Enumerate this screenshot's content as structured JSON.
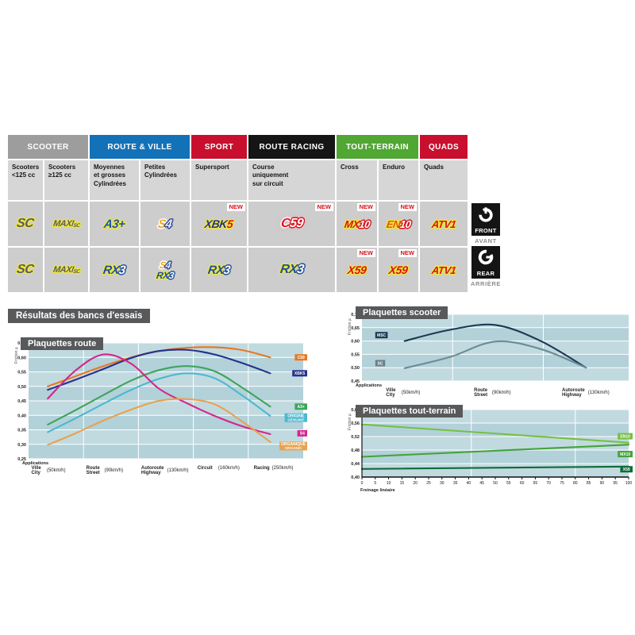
{
  "section_heading": "Résultats des bancs d'essais",
  "side_markers": {
    "front": {
      "title": "FRONT",
      "subtitle": "AVANT"
    },
    "rear": {
      "title": "REAR",
      "subtitle": "ARRIÈRE"
    }
  },
  "table": {
    "new_badge": "NEW",
    "groups": [
      {
        "label": "SCOOTER",
        "bg": "#9d9d9d",
        "span": 2
      },
      {
        "label": "ROUTE & VILLE",
        "bg": "#1371b8",
        "span": 2
      },
      {
        "label": "SPORT",
        "bg": "#c8102e",
        "span": 1
      },
      {
        "label": "ROUTE RACING",
        "bg": "#151515",
        "span": 1
      },
      {
        "label": "TOUT-TERRAIN",
        "bg": "#50a733",
        "span": 2
      },
      {
        "label": "QUADS",
        "bg": "#c8102e",
        "span": 1
      }
    ],
    "subcolumns": [
      "Scooters\n<125 cc",
      "Scooters\n≥125 cc",
      "Moyennes\net grosses\nCylindrées",
      "Petites\nCylindrées",
      "Supersport",
      "Course\nuniquement\nsur circuit",
      "Cross",
      "Enduro",
      "Quads"
    ],
    "rows": {
      "front": [
        {
          "logos": [
            {
              "fs": 16,
              "parts": [
                {
                  "t": "SC",
                  "c": "#5b5d60",
                  "o": "#eee73d"
                }
              ]
            }
          ]
        },
        {
          "logos": [
            {
              "fs": 11,
              "parts": [
                {
                  "t": "MAXI",
                  "c": "#5b5d60",
                  "o": "#eee73d"
                },
                {
                  "t": "SC",
                  "c": "#5b5d60",
                  "o": "#eee73d",
                  "sub": true
                }
              ]
            }
          ]
        },
        {
          "logos": [
            {
              "fs": 15,
              "parts": [
                {
                  "t": "A3+",
                  "c": "#1a56a8",
                  "o": "#eee73d"
                }
              ]
            }
          ]
        },
        {
          "logos": [
            {
              "fs": 15,
              "parts": [
                {
                  "t": "S",
                  "c": "#f2a71d",
                  "o": "#ffffff"
                },
                {
                  "t": "4",
                  "c": "#e9edf2",
                  "o": "#26418f"
                }
              ]
            }
          ]
        },
        {
          "new": true,
          "logos": [
            {
              "fs": 14,
              "parts": [
                {
                  "t": "XBK",
                  "c": "#26318d",
                  "o": "#eee73d"
                },
                {
                  "t": "5",
                  "c": "#d8131c",
                  "o": "#eee73d"
                }
              ]
            }
          ]
        },
        {
          "new": true,
          "logos": [
            {
              "fs": 16,
              "glow": "#f7a8c4",
              "parts": [
                {
                  "t": "C",
                  "c": "#d8131c",
                  "o": "#ffffff"
                },
                {
                  "t": "59",
                  "c": "#ffffff",
                  "o": "#d8131c"
                }
              ]
            }
          ]
        },
        {
          "new": true,
          "logos": [
            {
              "fs": 13,
              "parts": [
                {
                  "t": "MX",
                  "c": "#d8131c",
                  "o": "#eee73d"
                },
                {
                  "t": "10",
                  "c": "#ffffff",
                  "o": "#d8131c"
                }
              ]
            }
          ]
        },
        {
          "new": true,
          "logos": [
            {
              "fs": 13,
              "parts": [
                {
                  "t": "EN",
                  "c": "#e4570f",
                  "o": "#eee73d"
                },
                {
                  "t": "10",
                  "c": "#ffffff",
                  "o": "#d8131c"
                }
              ]
            }
          ]
        },
        {
          "logos": [
            {
              "fs": 13,
              "parts": [
                {
                  "t": "ATV1",
                  "c": "#d8131c",
                  "o": "#eee73d"
                }
              ]
            }
          ]
        }
      ],
      "rear": [
        {
          "logos": [
            {
              "fs": 16,
              "parts": [
                {
                  "t": "SC",
                  "c": "#5b5d60",
                  "o": "#eee73d"
                }
              ]
            }
          ]
        },
        {
          "logos": [
            {
              "fs": 11,
              "parts": [
                {
                  "t": "MAXI",
                  "c": "#5b5d60",
                  "o": "#eee73d"
                },
                {
                  "t": "SC",
                  "c": "#5b5d60",
                  "o": "#eee73d",
                  "sub": true
                }
              ]
            }
          ]
        },
        {
          "logos": [
            {
              "fs": 15,
              "parts": [
                {
                  "t": "RX",
                  "c": "#1f4fa0",
                  "o": "#eee73d"
                },
                {
                  "t": "3",
                  "c": "#fdfdf0",
                  "o": "#1f4fa0"
                }
              ]
            }
          ]
        },
        {
          "logos": [
            {
              "fs": 12,
              "parts": [
                {
                  "t": "S",
                  "c": "#f2a71d",
                  "o": "#ffffff"
                },
                {
                  "t": "4",
                  "c": "#e9edf2",
                  "o": "#26418f"
                }
              ]
            },
            {
              "fs": 12,
              "parts": [
                {
                  "t": "RX",
                  "c": "#1f4fa0",
                  "o": "#eee73d"
                },
                {
                  "t": "3",
                  "c": "#fdfdf0",
                  "o": "#1f4fa0"
                }
              ]
            }
          ]
        },
        {
          "logos": [
            {
              "fs": 15,
              "parts": [
                {
                  "t": "RX",
                  "c": "#1f4fa0",
                  "o": "#eee73d"
                },
                {
                  "t": "3",
                  "c": "#fdfdf0",
                  "o": "#1f4fa0"
                }
              ]
            }
          ]
        },
        {
          "logos": [
            {
              "fs": 16,
              "parts": [
                {
                  "t": "RX",
                  "c": "#1f4fa0",
                  "o": "#eee73d"
                },
                {
                  "t": "3",
                  "c": "#fdfdf0",
                  "o": "#1f4fa0"
                }
              ]
            }
          ]
        },
        {
          "new": true,
          "logos": [
            {
              "fs": 14,
              "parts": [
                {
                  "t": "X59",
                  "c": "#d8131c",
                  "o": "#eee73d"
                }
              ]
            }
          ]
        },
        {
          "new": true,
          "logos": [
            {
              "fs": 14,
              "parts": [
                {
                  "t": "X59",
                  "c": "#d8131c",
                  "o": "#eee73d"
                }
              ]
            }
          ]
        },
        {
          "logos": [
            {
              "fs": 13,
              "parts": [
                {
                  "t": "ATV1",
                  "c": "#d8131c",
                  "o": "#eee73d"
                }
              ]
            }
          ]
        }
      ]
    }
  },
  "chart_data": [
    {
      "id": "route",
      "type": "line",
      "title": "Plaquettes route",
      "ylabel": "Friction µ",
      "x_caption": "Applications",
      "ylim": [
        0.25,
        0.65
      ],
      "grid": true,
      "legend_position": "right",
      "yticks": [
        {
          "v": 0.65,
          "t": "0,65"
        },
        {
          "v": 0.6,
          "t": "0,60"
        },
        {
          "v": 0.55,
          "t": "0,55"
        },
        {
          "v": 0.5,
          "t": "0,50"
        },
        {
          "v": 0.45,
          "t": "0,45"
        },
        {
          "v": 0.4,
          "t": "0,40"
        },
        {
          "v": 0.35,
          "t": "0,35"
        },
        {
          "v": 0.3,
          "t": "0,30"
        },
        {
          "v": 0.25,
          "t": "0,25"
        }
      ],
      "categories": [
        {
          "fr": "Ville",
          "en": "City",
          "speed": "(50km/h)"
        },
        {
          "fr": "Route",
          "en": "Street",
          "speed": "(90km/h)"
        },
        {
          "fr": "Autoroute",
          "en": "Highway",
          "speed": "(130km/h)"
        },
        {
          "fr": "Circuit",
          "speed": "(160km/h)"
        },
        {
          "fr": "Racing",
          "speed": "(250km/h)"
        }
      ],
      "series": [
        {
          "name": "C59",
          "color": "#e87722",
          "label": {
            "y": 0.6
          },
          "values": [
            0.5,
            0.535,
            0.57,
            0.6,
            0.622,
            0.633,
            0.635,
            0.625,
            0.6
          ]
        },
        {
          "name": "XBK5",
          "color": "#26318d",
          "label": {
            "y": 0.545
          },
          "values": [
            0.488,
            0.523,
            0.56,
            0.598,
            0.622,
            0.626,
            0.61,
            0.58,
            0.545
          ]
        },
        {
          "name": "A3+",
          "color": "#3fa45c",
          "label": {
            "y": 0.43
          },
          "values": [
            0.368,
            0.418,
            0.47,
            0.52,
            0.556,
            0.57,
            0.552,
            0.495,
            0.43
          ]
        },
        {
          "name": "ORIGINE GENUINE",
          "color": "#4cb8cf",
          "label_text": [
            "ORIGINE",
            "GENUINE"
          ],
          "label": {
            "y": 0.392
          },
          "values": [
            0.342,
            0.39,
            0.44,
            0.488,
            0.526,
            0.545,
            0.528,
            0.468,
            0.398
          ]
        },
        {
          "name": "S4",
          "color": "#d4268c",
          "label": {
            "y": 0.338
          },
          "values": [
            0.458,
            0.555,
            0.61,
            0.578,
            0.492,
            0.442,
            0.398,
            0.362,
            0.335
          ]
        },
        {
          "name": "ORGANIQUE ORGANIC",
          "color": "#e6a34f",
          "label_text": [
            "ORGANIQUE",
            "ORGANIC"
          ],
          "label": {
            "y": 0.294
          },
          "values": [
            0.298,
            0.338,
            0.382,
            0.42,
            0.45,
            0.456,
            0.438,
            0.378,
            0.308
          ]
        }
      ]
    },
    {
      "id": "scooter",
      "type": "line",
      "title": "Plaquettes scooter",
      "ylabel": "Friction µ",
      "x_caption": "Applications",
      "ylim": [
        0.45,
        0.7
      ],
      "grid": true,
      "legend_position": "inline-left",
      "yticks": [
        {
          "v": 0.7,
          "t": "0,70"
        },
        {
          "v": 0.65,
          "t": "0,65"
        },
        {
          "v": 0.6,
          "t": "0,60"
        },
        {
          "v": 0.55,
          "t": "0,55"
        },
        {
          "v": 0.5,
          "t": "0,50"
        },
        {
          "v": 0.45,
          "t": "0,45"
        }
      ],
      "categories": [
        {
          "fr": "Ville",
          "en": "City",
          "speed": "(50km/h)"
        },
        {
          "fr": "Route",
          "en": "Street",
          "speed": "(90km/h)"
        },
        {
          "fr": "Autoroute",
          "en": "Highway",
          "speed": "(130km/h)"
        }
      ],
      "series": [
        {
          "name": "MSC",
          "color": "#1c3a52",
          "label_bg": "#1c3a52",
          "label": {
            "x": 0.05,
            "y": 0.622
          },
          "values": [
            0.6,
            0.642,
            0.66,
            0.6,
            0.5
          ]
        },
        {
          "name": "SC",
          "color": "#6b8b97",
          "label_bg": "#6e7f88",
          "label": {
            "x": 0.05,
            "y": 0.517
          },
          "values": [
            0.498,
            0.54,
            0.598,
            0.57,
            0.5
          ]
        }
      ]
    },
    {
      "id": "tt",
      "type": "line",
      "title": "Plaquettes tout-terrain",
      "ylabel": "Friction µ",
      "xlabel": "Freinage linéaire",
      "ylim": [
        0.4,
        0.6
      ],
      "xlim": [
        0,
        100
      ],
      "grid": true,
      "legend_position": "right",
      "yticks": [
        {
          "v": 0.6,
          "t": "0,60"
        },
        {
          "v": 0.56,
          "t": "0,56"
        },
        {
          "v": 0.52,
          "t": "0,52"
        },
        {
          "v": 0.48,
          "t": "0,48"
        },
        {
          "v": 0.44,
          "t": "0,44"
        },
        {
          "v": 0.4,
          "t": "0,40"
        }
      ],
      "xticks": [
        0,
        5,
        10,
        15,
        20,
        25,
        30,
        35,
        40,
        45,
        50,
        55,
        60,
        65,
        70,
        75,
        80,
        85,
        90,
        95,
        100
      ],
      "series": [
        {
          "name": "EN10",
          "color": "#76c043",
          "label": {
            "y": 0.521
          },
          "values": [
            0.556,
            0.502
          ]
        },
        {
          "name": "MX10",
          "color": "#44a338",
          "label": {
            "y": 0.468
          },
          "values": [
            0.46,
            0.496
          ]
        },
        {
          "name": "X59",
          "color": "#0e6b3a",
          "label": {
            "y": 0.423
          },
          "values": [
            0.424,
            0.431
          ]
        }
      ]
    }
  ]
}
